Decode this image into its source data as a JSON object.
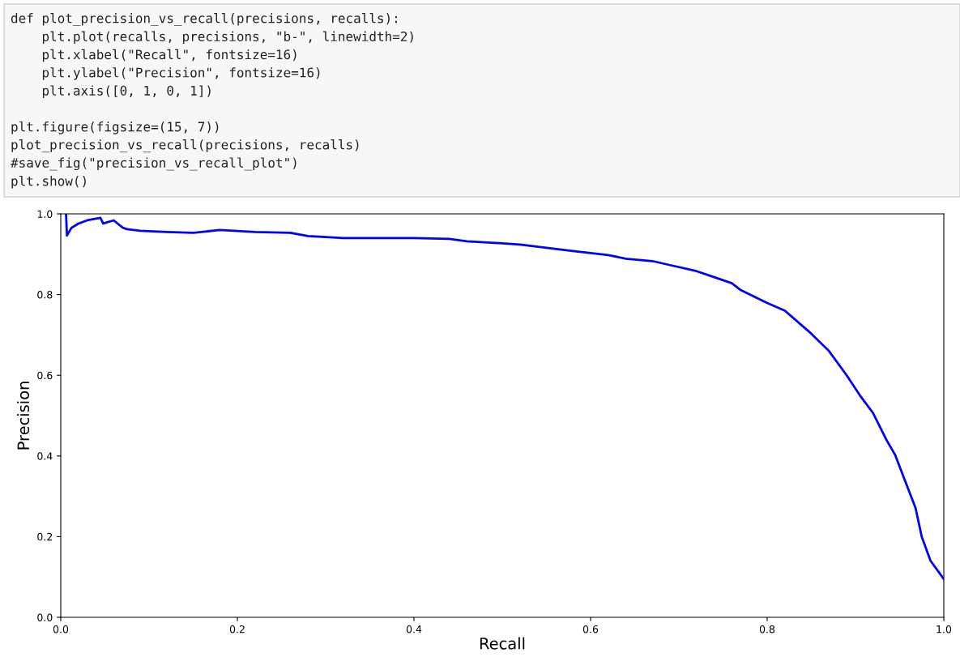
{
  "chart_data": {
    "type": "line",
    "xlabel": "Recall",
    "ylabel": "Precision",
    "annotations": [
      "def plot_precision_vs_recall(precisions, recalls):",
      "    plt.plot(recalls, precisions, \"b-\", linewidth=2)",
      "    plt.xlabel(\"Recall\", fontsize=16)",
      "    plt.ylabel(\"Precision\", fontsize=16)",
      "    plt.axis([0, 1, 0, 1])",
      "plt.figure(figsize=(15, 7))",
      "plot_precision_vs_recall(precisions, recalls)",
      "#save_fig(\"precision_vs_recall_plot\")",
      "plt.show()"
    ],
    "x": [
      0.006,
      0.007,
      0.012,
      0.02,
      0.03,
      0.045,
      0.048,
      0.06,
      0.065,
      0.07,
      0.075,
      0.09,
      0.12,
      0.15,
      0.18,
      0.22,
      0.26,
      0.28,
      0.32,
      0.4,
      0.44,
      0.46,
      0.5,
      0.52,
      0.55,
      0.58,
      0.6,
      0.62,
      0.64,
      0.67,
      0.69,
      0.72,
      0.74,
      0.76,
      0.77,
      0.8,
      0.82,
      0.85,
      0.87,
      0.89,
      0.905,
      0.92,
      0.935,
      0.945,
      0.955,
      0.968,
      0.975,
      0.985,
      1.0
    ],
    "series": [
      {
        "color": "#0000ff",
        "values": [
          1.0,
          0.946,
          0.965,
          0.976,
          0.984,
          0.99,
          0.976,
          0.984,
          0.975,
          0.966,
          0.962,
          0.958,
          0.955,
          0.953,
          0.96,
          0.955,
          0.953,
          0.945,
          0.94,
          0.94,
          0.938,
          0.932,
          0.927,
          0.924,
          0.916,
          0.908,
          0.903,
          0.898,
          0.889,
          0.883,
          0.873,
          0.858,
          0.843,
          0.828,
          0.811,
          0.779,
          0.76,
          0.703,
          0.66,
          0.6,
          0.55,
          0.506,
          0.44,
          0.402,
          0.345,
          0.271,
          0.2,
          0.14,
          0.095
        ]
      }
    ],
    "xlim": [
      0,
      1
    ],
    "ylim": [
      0,
      1
    ],
    "xticks": [
      {
        "value": 0,
        "label": "0.0"
      },
      0.2,
      0.4,
      0.6,
      0.8,
      {
        "value": 1,
        "label": "1.0"
      }
    ],
    "yticks": [
      {
        "value": 0,
        "label": "0.0"
      },
      0.2,
      0.4,
      0.6,
      0.8,
      {
        "value": 1,
        "label": "1.0"
      }
    ],
    "grid": false,
    "legend": false,
    "marker": "none",
    "line_style": "solid"
  }
}
